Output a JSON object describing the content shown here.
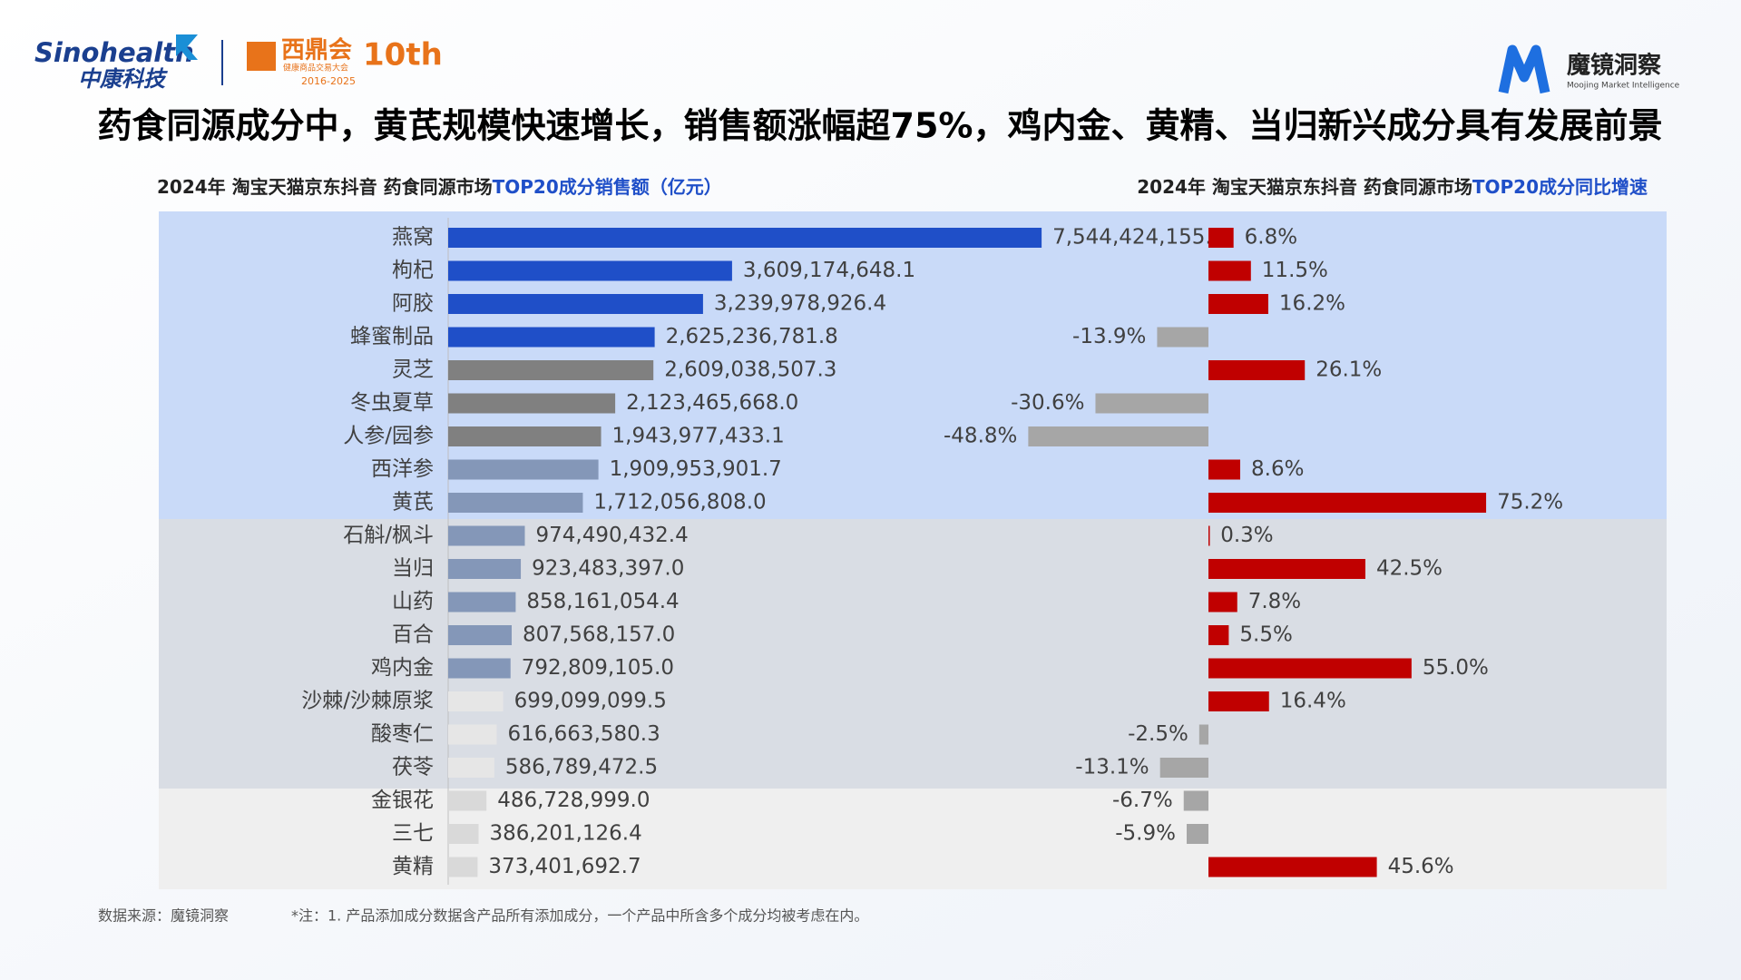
{
  "page": {
    "logo_left": "Sinohealth",
    "logo_left_sub": "中康科技",
    "logo_mid": "西鼎会",
    "logo_mid_sub": "健康商品交易大会",
    "logo_mid_years": "2016-2025",
    "logo_mid_badge": "10th",
    "logo_right": "魔镜洞察",
    "logo_right_sub": "Moojing Market Intelligence",
    "title": "药食同源成分中，黄芪规模快速增长，销售额涨幅超75%，鸡内金、黄精、当归新兴成分具有发展前景",
    "source": "数据来源：魔镜洞察",
    "note": "*注：1. 产品添加成分数据含产品所有添加成分，一个产品中所含多个成分均被考虑在内。"
  },
  "chart_data": [
    {
      "type": "bar",
      "orientation": "horizontal",
      "title": "2024年 淘宝天猫京东抖音 药食同源市场",
      "title_highlight": "TOP20成分销售额（亿元）",
      "categories": [
        "燕窝",
        "枸杞",
        "阿胶",
        "蜂蜜制品",
        "灵芝",
        "冬虫夏草",
        "人参/园参",
        "西洋参",
        "黄芪",
        "石斛/枫斗",
        "当归",
        "山药",
        "百合",
        "鸡内金",
        "沙棘/沙棘原浆",
        "酸枣仁",
        "茯苓",
        "金银花",
        "三七",
        "黄精"
      ],
      "values": [
        7544424155.1,
        3609174648.1,
        3239978926.4,
        2625236781.8,
        2609038507.3,
        2123465668.0,
        1943977433.1,
        1909953901.7,
        1712056808.0,
        974490432.4,
        923483397.0,
        858161054.4,
        807568157.0,
        792809105.0,
        699099099.5,
        616663580.3,
        586789472.5,
        486728999.0,
        386201126.4,
        373401692.7
      ],
      "value_labels": [
        "7,544,424,155.1",
        "3,609,174,648.1",
        "3,239,978,926.4",
        "2,625,236,781.8",
        "2,609,038,507.3",
        "2,123,465,668.0",
        "1,943,977,433.1",
        "1,909,953,901.7",
        "1,712,056,808.0",
        "974,490,432.4",
        "923,483,397.0",
        "858,161,054.4",
        "807,568,157.0",
        "792,809,105.0",
        "699,099,099.5",
        "616,663,580.3",
        "586,789,472.5",
        "486,728,999.0",
        "386,201,126.4",
        "373,401,692.7"
      ],
      "colors": [
        "#1f4fc8",
        "#1f4fc8",
        "#1f4fc8",
        "#1f4fc8",
        "#808080",
        "#808080",
        "#808080",
        "#8497b8",
        "#8497b8",
        "#8497b8",
        "#8497b8",
        "#8497b8",
        "#8497b8",
        "#8497b8",
        "#e6e6e6",
        "#e6e6e6",
        "#e6e6e6",
        "#d9d9d9",
        "#d9d9d9",
        "#d9d9d9"
      ],
      "xlim": [
        0,
        10000000000
      ]
    },
    {
      "type": "bar",
      "orientation": "horizontal",
      "title": "2024年 淘宝天猫京东抖音 药食同源市场",
      "title_highlight": "TOP20成分同比增速",
      "values": [
        6.8,
        11.5,
        16.2,
        -13.9,
        26.1,
        -30.6,
        -48.8,
        8.6,
        75.2,
        0.3,
        42.5,
        7.8,
        5.5,
        55,
        16.4,
        -2.5,
        -13.1,
        -6.7,
        -5.9,
        45.6
      ],
      "value_labels": [
        "6.8%",
        "11.5%",
        "16.2%",
        "-13.9%",
        "26.1%",
        "-30.6%",
        "-48.8%",
        "8.6%",
        "75.2%",
        "0.3%",
        "42.5%",
        "7.8%",
        "5.5%",
        "55.0%",
        "16.4%",
        "-2.5%",
        "-13.1%",
        "-6.7%",
        "-5.9%",
        "45.6%"
      ],
      "positive_color": "#c00000",
      "negative_color": "#a6a6a6",
      "xlim": [
        -100,
        100
      ]
    }
  ]
}
